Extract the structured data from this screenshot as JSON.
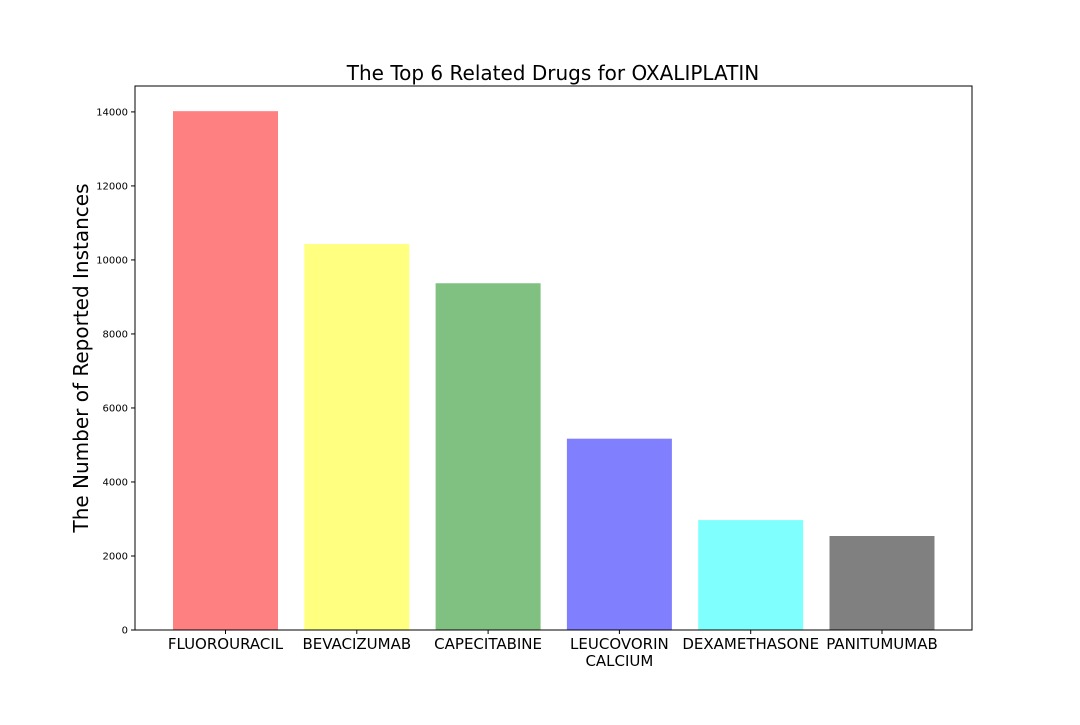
{
  "chart_data": {
    "type": "bar",
    "title": "The Top 6 Related Drugs for OXALIPLATIN",
    "xlabel": "",
    "ylabel": "The Number of Reported Instances",
    "categories": [
      "FLUOROURACIL",
      "BEVACIZUMAB",
      "CAPECITABINE",
      "LEUCOVORIN\nCALCIUM",
      "DEXAMETHASONE",
      "PANITUMUMAB"
    ],
    "values": [
      14020,
      10430,
      9370,
      5170,
      2970,
      2540
    ],
    "colors": [
      "#ff8080",
      "#ffff80",
      "#80c080",
      "#8080ff",
      "#80ffff",
      "#808080"
    ],
    "ylim": [
      0,
      14700
    ],
    "yticks": [
      0,
      2000,
      4000,
      6000,
      8000,
      10000,
      12000,
      14000
    ],
    "grid": false
  }
}
